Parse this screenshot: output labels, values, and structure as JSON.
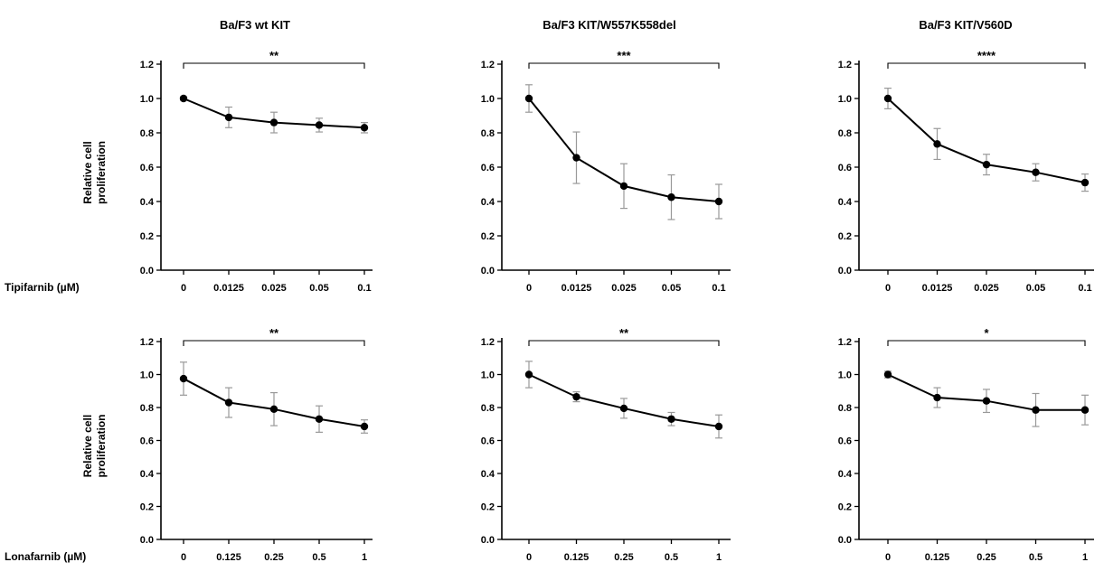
{
  "chart_data": [
    {
      "type": "line",
      "title": "Ba/F3 wt KIT",
      "ylabel": "Relative cell proliferation",
      "drug_label": "Tipifarnib (µM)",
      "categories": [
        "0",
        "0.0125",
        "0.025",
        "0.05",
        "0.1"
      ],
      "values": [
        1.0,
        0.89,
        0.86,
        0.845,
        0.83
      ],
      "errors": [
        0.01,
        0.06,
        0.06,
        0.04,
        0.03
      ],
      "ylim": [
        0,
        1.2
      ],
      "yticks": [
        "0.0",
        "0.2",
        "0.4",
        "0.6",
        "0.8",
        "1.0",
        "1.2"
      ],
      "significance": "**",
      "grid": false
    },
    {
      "type": "line",
      "title": "Ba/F3 KIT/W557K558del",
      "ylabel": "",
      "drug_label": "",
      "categories": [
        "0",
        "0.0125",
        "0.025",
        "0.05",
        "0.1"
      ],
      "values": [
        1.0,
        0.655,
        0.49,
        0.425,
        0.4
      ],
      "errors": [
        0.08,
        0.15,
        0.13,
        0.13,
        0.1
      ],
      "ylim": [
        0,
        1.2
      ],
      "yticks": [
        "0.0",
        "0.2",
        "0.4",
        "0.6",
        "0.8",
        "1.0",
        "1.2"
      ],
      "significance": "***",
      "grid": false
    },
    {
      "type": "line",
      "title": "Ba/F3 KIT/V560D",
      "ylabel": "",
      "drug_label": "",
      "categories": [
        "0",
        "0.0125",
        "0.025",
        "0.05",
        "0.1"
      ],
      "values": [
        1.0,
        0.735,
        0.615,
        0.57,
        0.51
      ],
      "errors": [
        0.06,
        0.09,
        0.06,
        0.05,
        0.05
      ],
      "ylim": [
        0,
        1.2
      ],
      "yticks": [
        "0.0",
        "0.2",
        "0.4",
        "0.6",
        "0.8",
        "1.0",
        "1.2"
      ],
      "significance": "****",
      "grid": false
    },
    {
      "type": "line",
      "title": "",
      "ylabel": "Relative cell proliferation",
      "drug_label": "Lonafarnib (µM)",
      "categories": [
        "0",
        "0.125",
        "0.25",
        "0.5",
        "1"
      ],
      "values": [
        0.975,
        0.83,
        0.79,
        0.73,
        0.685
      ],
      "errors": [
        0.1,
        0.09,
        0.1,
        0.08,
        0.04
      ],
      "ylim": [
        0,
        1.2
      ],
      "yticks": [
        "0.0",
        "0.2",
        "0.4",
        "0.6",
        "0.8",
        "1.0",
        "1.2"
      ],
      "significance": "**",
      "grid": false
    },
    {
      "type": "line",
      "title": "",
      "ylabel": "",
      "drug_label": "",
      "categories": [
        "0",
        "0.125",
        "0.25",
        "0.5",
        "1"
      ],
      "values": [
        1.0,
        0.865,
        0.795,
        0.73,
        0.685
      ],
      "errors": [
        0.08,
        0.03,
        0.06,
        0.04,
        0.07
      ],
      "ylim": [
        0,
        1.2
      ],
      "yticks": [
        "0.0",
        "0.2",
        "0.4",
        "0.6",
        "0.8",
        "1.0",
        "1.2"
      ],
      "significance": "**",
      "grid": false
    },
    {
      "type": "line",
      "title": "",
      "ylabel": "",
      "drug_label": "",
      "categories": [
        "0",
        "0.125",
        "0.25",
        "0.5",
        "1"
      ],
      "values": [
        1.0,
        0.86,
        0.84,
        0.785,
        0.785
      ],
      "errors": [
        0.02,
        0.06,
        0.07,
        0.1,
        0.09
      ],
      "ylim": [
        0,
        1.2
      ],
      "yticks": [
        "0.0",
        "0.2",
        "0.4",
        "0.6",
        "0.8",
        "1.0",
        "1.2"
      ],
      "significance": "*",
      "grid": false
    }
  ]
}
